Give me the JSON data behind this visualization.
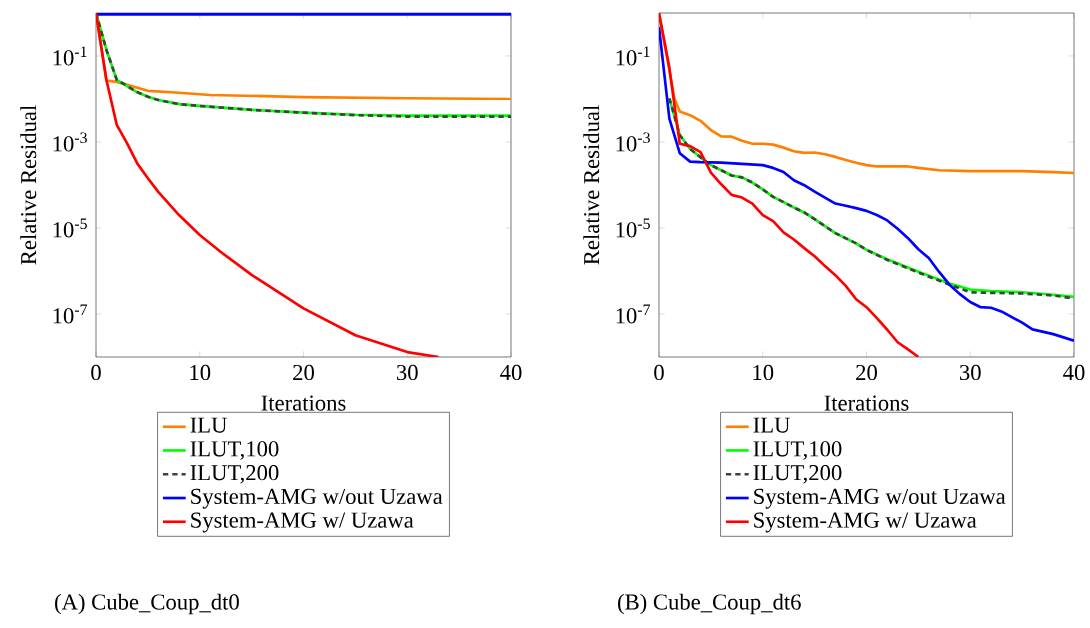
{
  "chart_data": [
    {
      "type": "line",
      "xlabel": "Iterations",
      "ylabel": "Relative Residual",
      "log": "y",
      "legend": "bottom",
      "xlim": [
        0,
        40
      ],
      "ylim": [
        1e-08,
        1
      ],
      "xticks": [
        0,
        10,
        20,
        30,
        40
      ],
      "yticks": [
        {
          "value": 0.1,
          "label": "10$^{-1}$"
        },
        {
          "value": 0.001,
          "label": "10$^{-3}$"
        },
        {
          "value": 1e-05,
          "label": "10$^{-5}$"
        },
        {
          "value": 1e-07,
          "label": "10$^{-7}$"
        }
      ],
      "annotations": [
        "(A) Cube_Coup_dt0"
      ],
      "series": [
        {
          "name": "ILU",
          "color": "#ff7f00",
          "x": [
            0,
            1,
            2,
            5,
            8,
            11,
            20,
            30,
            40
          ],
          "values": [
            1,
            0.027,
            0.025,
            0.0155,
            0.014,
            0.0124,
            0.0111,
            0.0104,
            0.01
          ]
        },
        {
          "name": "ILUT,100",
          "color": "#00ff00",
          "x": [
            0,
            1,
            2,
            4,
            5,
            6,
            8,
            10,
            15,
            20,
            25,
            30,
            40
          ],
          "values": [
            1,
            0.14,
            0.028,
            0.0143,
            0.0113,
            0.0095,
            0.0076,
            0.0069,
            0.0056,
            0.0048,
            0.0043,
            0.0041,
            0.0041
          ]
        },
        {
          "name": "ILUT,200",
          "color": "#404040",
          "line_style": "dashed",
          "x": [
            0,
            1,
            2,
            4,
            5,
            6,
            8,
            10,
            15,
            20,
            25,
            30,
            40
          ],
          "values": [
            1,
            0.14,
            0.028,
            0.0143,
            0.0113,
            0.0095,
            0.0076,
            0.0069,
            0.0056,
            0.0048,
            0.0042,
            0.0039,
            0.0039
          ]
        },
        {
          "name": "System-AMG w/out Uzawa",
          "color": "#0000ff",
          "x": [
            0,
            10,
            20,
            30,
            40
          ],
          "values": [
            0.93,
            0.93,
            0.93,
            0.93,
            0.93
          ]
        },
        {
          "name": "System-AMG w/ Uzawa",
          "color": "#ff0000",
          "x": [
            0,
            1,
            2,
            3,
            4,
            5,
            6,
            8,
            10,
            12,
            15,
            20,
            25,
            30,
            33
          ],
          "values": [
            1,
            0.028,
            0.0025,
            0.00093,
            0.00031,
            0.000144,
            6.9e-05,
            2e-05,
            6.9e-06,
            2.8e-06,
            8.1e-07,
            1.35e-07,
            3.2e-08,
            1.3e-08,
            1e-08
          ]
        }
      ]
    },
    {
      "type": "line",
      "xlabel": "Iterations",
      "ylabel": "Relative Residual",
      "log": "y",
      "legend": "bottom",
      "xlim": [
        0,
        40
      ],
      "ylim": [
        1e-08,
        1
      ],
      "xticks": [
        0,
        10,
        20,
        30,
        40
      ],
      "yticks": [
        {
          "value": 0.1,
          "label": "10$^{-1}$"
        },
        {
          "value": 0.001,
          "label": "10$^{-3}$"
        },
        {
          "value": 1e-05,
          "label": "10$^{-5}$"
        },
        {
          "value": 1e-07,
          "label": "10$^{-7}$"
        }
      ],
      "annotations": [
        "(B) Cube_Coup_dt6"
      ],
      "series": [
        {
          "name": "ILU",
          "color": "#ff7f00",
          "x": [
            0,
            1.5,
            2,
            3,
            4,
            5,
            6,
            7,
            8,
            9,
            10,
            11,
            12,
            13,
            14,
            15,
            16,
            17,
            18,
            19,
            20,
            21,
            22,
            24,
            25,
            27,
            30,
            35,
            38,
            40
          ],
          "values": [
            1,
            0.01,
            0.0051,
            0.0042,
            0.0031,
            0.0019,
            0.00135,
            0.00133,
            0.00107,
            0.00091,
            0.00091,
            0.00087,
            0.00074,
            0.00061,
            0.00056,
            0.00057,
            0.00052,
            0.00045,
            0.00038,
            0.00033,
            0.00029,
            0.00027,
            0.00027,
            0.00027,
            0.00025,
            0.00022,
            0.00021,
            0.00021,
            0.0002,
            0.00019
          ]
        },
        {
          "name": "ILUT,100",
          "color": "#00ff00",
          "x": [
            1,
            2,
            3,
            4,
            5,
            6,
            7,
            8,
            9,
            10,
            11,
            12,
            13,
            14,
            15,
            17,
            19,
            20,
            22,
            25,
            28,
            30,
            32,
            35,
            38,
            40
          ],
          "values": [
            0.0104,
            0.00145,
            0.00069,
            0.00044,
            0.00029,
            0.00022,
            0.000166,
            0.00015,
            0.000114,
            7.9e-05,
            5.3e-05,
            4e-05,
            3e-05,
            2.3e-05,
            1.6e-05,
            7.6e-06,
            4.4e-06,
            3.1e-06,
            1.87e-06,
            9.6e-07,
            5.1e-07,
            3.7e-07,
            3.4e-07,
            3.2e-07,
            2.8e-07,
            2.5e-07
          ]
        },
        {
          "name": "ILUT,200",
          "color": "#404040",
          "line_style": "dashed",
          "x": [
            1,
            2,
            3,
            4,
            5,
            6,
            7,
            8,
            9,
            10,
            11,
            12,
            13,
            14,
            15,
            17,
            19,
            20,
            22,
            25,
            28,
            30,
            32,
            35,
            38,
            40
          ],
          "values": [
            0.0104,
            0.00145,
            0.00069,
            0.00044,
            0.00029,
            0.00022,
            0.000166,
            0.00015,
            0.000114,
            7.9e-05,
            5.3e-05,
            4e-05,
            3e-05,
            2.3e-05,
            1.6e-05,
            7.6e-06,
            4.4e-06,
            3.1e-06,
            1.8e-06,
            9.2e-07,
            4.8e-07,
            3.2e-07,
            3.1e-07,
            3e-07,
            2.7e-07,
            2.3e-07
          ]
        },
        {
          "name": "System-AMG w/out Uzawa",
          "color": "#0000ff",
          "x": [
            0,
            1,
            2,
            3,
            4,
            6,
            8,
            10,
            11,
            12,
            13,
            14,
            15,
            16,
            17,
            18,
            19,
            20,
            21,
            22,
            23,
            24,
            25,
            26,
            27,
            28,
            29,
            30,
            31,
            32,
            33,
            35,
            36,
            38,
            40
          ],
          "values": [
            0.47,
            0.0035,
            0.00055,
            0.00035,
            0.00034,
            0.00033,
            0.00031,
            0.00029,
            0.00025,
            0.0002,
            0.000129,
            9.9e-05,
            7e-05,
            5.1e-05,
            3.7e-05,
            3.3e-05,
            2.9e-05,
            2.5e-05,
            2e-05,
            1.5e-05,
            9.6e-06,
            5.8e-06,
            3.2e-06,
            2e-06,
            9.5e-07,
            4.8e-07,
            2.9e-07,
            1.9e-07,
            1.44e-07,
            1.4e-07,
            1.15e-07,
            6.3e-08,
            4.4e-08,
            3.4e-08,
            2.4e-08
          ]
        },
        {
          "name": "System-AMG w/ Uzawa",
          "color": "#ff0000",
          "x": [
            0,
            1,
            2,
            3,
            4,
            5,
            6,
            7,
            8,
            9,
            10,
            11,
            12,
            13,
            14,
            15,
            16,
            17,
            18,
            19,
            20,
            21,
            22,
            23,
            24,
            25
          ],
          "values": [
            1,
            0.053,
            0.00091,
            0.0008,
            0.00058,
            0.000195,
            0.000104,
            5.9e-05,
            5.1e-05,
            3.7e-05,
            2e-05,
            1.44e-05,
            7.9e-06,
            5.4e-06,
            3.4e-06,
            2.2e-06,
            1.3e-06,
            8e-07,
            4.5e-07,
            2.2e-07,
            1.44e-07,
            8e-08,
            4.3e-08,
            2.2e-08,
            1.5e-08,
            1e-08
          ]
        }
      ]
    }
  ]
}
